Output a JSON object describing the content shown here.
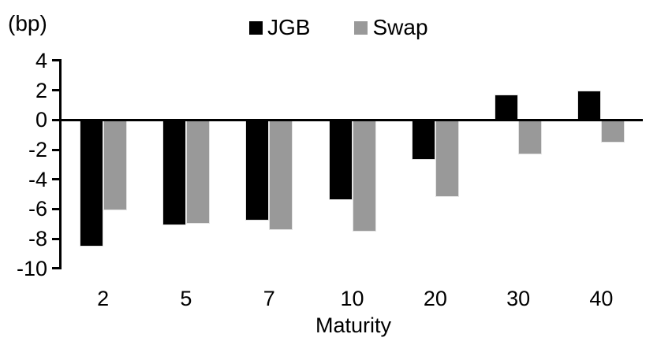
{
  "chart_data": {
    "type": "bar",
    "title": "",
    "unit_label": "(bp)",
    "xlabel": "Maturity",
    "ylabel": "",
    "categories": [
      "2",
      "5",
      "7",
      "10",
      "20",
      "30",
      "40"
    ],
    "series": [
      {
        "name": "JGB",
        "color": "#000000",
        "values": [
          -8.5,
          -7.1,
          -6.8,
          -5.4,
          -2.7,
          1.7,
          2.0
        ]
      },
      {
        "name": "Swap",
        "color": "#999999",
        "values": [
          -6.1,
          -7.0,
          -7.4,
          -7.5,
          -5.2,
          -2.3,
          -1.5
        ]
      }
    ],
    "yticks": [
      4,
      2,
      0,
      -2,
      -4,
      -6,
      -8,
      -10
    ],
    "ylim": [
      -10,
      4
    ],
    "legend_position": "top-center",
    "grid": false,
    "colors": {
      "axis": "#000000",
      "text": "#000000",
      "background": "#ffffff"
    }
  }
}
